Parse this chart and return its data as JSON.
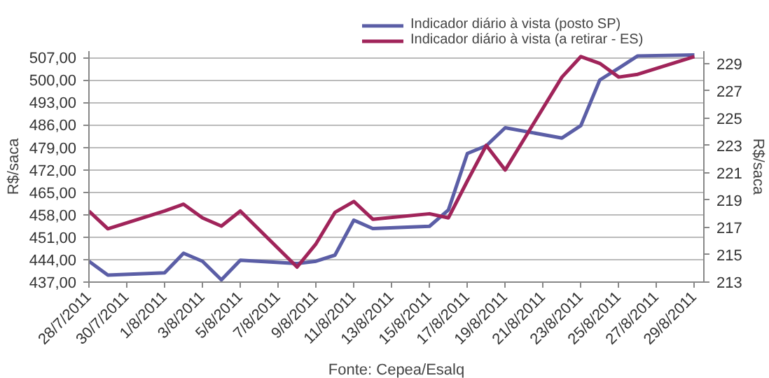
{
  "chart_data": {
    "type": "line",
    "ylabel": "R$/saca",
    "y2label": "R$/saca",
    "x": [
      "2011-07-28",
      "2011-07-29",
      "2011-08-01",
      "2011-08-02",
      "2011-08-03",
      "2011-08-04",
      "2011-08-05",
      "2011-08-08",
      "2011-08-09",
      "2011-08-10",
      "2011-08-11",
      "2011-08-12",
      "2011-08-15",
      "2011-08-16",
      "2011-08-17",
      "2011-08-18",
      "2011-08-19",
      "2011-08-22",
      "2011-08-23",
      "2011-08-24",
      "2011-08-25",
      "2011-08-26",
      "2011-08-29"
    ],
    "series": [
      {
        "name": "Indicador diário à vista (posto SP)",
        "color": "#5b5ea6",
        "values": [
          443.5,
          439.2,
          439.9,
          446.0,
          443.5,
          437.7,
          443.8,
          442.8,
          443.5,
          445.4,
          456.3,
          453.7,
          454.4,
          459.5,
          477.1,
          479.5,
          485.1,
          481.9,
          485.8,
          500.0,
          503.7,
          507.5,
          507.8
        ]
      },
      {
        "name": "Indicador diário à vista (a retirar - ES)",
        "color": "#a0245a",
        "axis": "y2",
        "values": [
          218.2,
          216.9,
          218.2,
          218.7,
          217.7,
          217.1,
          218.2,
          214.1,
          215.8,
          218.1,
          218.9,
          217.6,
          218.0,
          217.7,
          220.4,
          223.0,
          221.2,
          228.0,
          229.5,
          229.0,
          228.0,
          228.2,
          229.5
        ]
      }
    ],
    "xlim": [
      "2011-07-28",
      "2011-08-29T12:00"
    ],
    "xticks": [
      {
        "value": "2011-07-28",
        "label": "28/7/2011"
      },
      {
        "value": "2011-07-30",
        "label": "30/7/2011"
      },
      {
        "value": "2011-08-01",
        "label": "1/8/2011"
      },
      {
        "value": "2011-08-03",
        "label": "3/8/2011"
      },
      {
        "value": "2011-08-05",
        "label": "5/8/2011"
      },
      {
        "value": "2011-08-07",
        "label": "7/8/2011"
      },
      {
        "value": "2011-08-09",
        "label": "9/8/2011"
      },
      {
        "value": "2011-08-11",
        "label": "11/8/2011"
      },
      {
        "value": "2011-08-13",
        "label": "13/8/2011"
      },
      {
        "value": "2011-08-15",
        "label": "15/8/2011"
      },
      {
        "value": "2011-08-17",
        "label": "17/8/2011"
      },
      {
        "value": "2011-08-19",
        "label": "19/8/2011"
      },
      {
        "value": "2011-08-21",
        "label": "21/8/2011"
      },
      {
        "value": "2011-08-23",
        "label": "23/8/2011"
      },
      {
        "value": "2011-08-25",
        "label": "25/8/2011"
      },
      {
        "value": "2011-08-27",
        "label": "27/8/2011"
      },
      {
        "value": "2011-08-29",
        "label": "29/8/2011"
      }
    ],
    "ylim": [
      437,
      509
    ],
    "yticks": [
      {
        "value": 437,
        "label": "437,00"
      },
      {
        "value": 444,
        "label": "444,00"
      },
      {
        "value": 451,
        "label": "451,00"
      },
      {
        "value": 458,
        "label": "458,00"
      },
      {
        "value": 465,
        "label": "465,00"
      },
      {
        "value": 472,
        "label": "472,00"
      },
      {
        "value": 479,
        "label": "479,00"
      },
      {
        "value": 486,
        "label": "486,00"
      },
      {
        "value": 493,
        "label": "493,00"
      },
      {
        "value": 500,
        "label": "500,00"
      },
      {
        "value": 507,
        "label": "507,00"
      }
    ],
    "y2lim": [
      213,
      229.9
    ],
    "y2ticks": [
      213,
      215,
      217,
      219,
      221,
      223,
      225,
      227,
      229
    ],
    "grid": "y",
    "legend": "top",
    "marker": "none",
    "line_style": "solid",
    "annotations": [
      "Fonte: Cepea/Esalq"
    ]
  }
}
